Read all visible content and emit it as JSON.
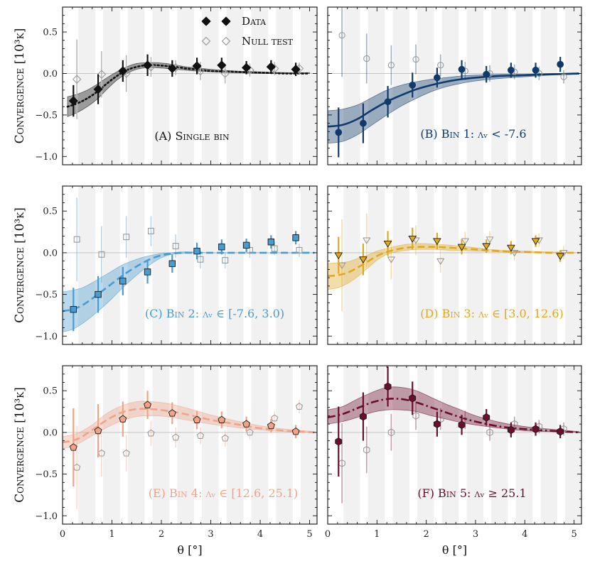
{
  "chart_data": {
    "type": "scatter",
    "x_label": "θ [°]",
    "y_label": "Convergence [10³κ]",
    "xlim": [
      0,
      5.15
    ],
    "ylim": [
      -1.1,
      0.8
    ],
    "x_ticks": [
      0,
      1,
      2,
      3,
      4,
      5
    ],
    "y_ticks": [
      -1.0,
      -0.5,
      0.0,
      0.5
    ],
    "y_tick_labels": [
      "−1.0",
      "−0.5",
      "0.0",
      "0.5"
    ],
    "legend": {
      "data_label": "Data",
      "null_label": "Null test",
      "location": "upper-center of panel A"
    },
    "panels": [
      {
        "id": "A",
        "label": "(A) Single bin",
        "color": "#111111",
        "marker": "diamond",
        "linestyle": "dotted",
        "x": [
          0.22,
          0.72,
          1.22,
          1.72,
          2.22,
          2.72,
          3.22,
          3.72,
          4.22,
          4.72
        ],
        "data": [
          -0.33,
          -0.19,
          0.03,
          0.1,
          0.06,
          0.09,
          0.1,
          0.07,
          0.08,
          0.05
        ],
        "err": [
          0.19,
          0.18,
          0.13,
          0.13,
          0.1,
          0.1,
          0.09,
          0.08,
          0.08,
          0.08
        ],
        "null": [
          -0.07,
          -0.01,
          0.0,
          0.08,
          0.07,
          0.03,
          0.0,
          0.04,
          0.06,
          0.06
        ],
        "null_err": [
          0.48,
          0.28,
          0.22,
          0.12,
          0.09,
          0.11,
          0.12,
          0.08,
          0.08,
          0.07
        ],
        "model_x": [
          0.1,
          0.3,
          0.5,
          0.7,
          0.9,
          1.1,
          1.3,
          1.5,
          1.7,
          1.9,
          2.1,
          2.3,
          2.5,
          2.7,
          3.0,
          3.5,
          4.0,
          4.5,
          5.0
        ],
        "model": [
          -0.4,
          -0.36,
          -0.3,
          -0.22,
          -0.12,
          -0.03,
          0.04,
          0.08,
          0.1,
          0.1,
          0.09,
          0.08,
          0.06,
          0.05,
          0.03,
          0.02,
          0.01,
          0.0,
          0.0
        ],
        "band_lo": [
          -0.52,
          -0.47,
          -0.4,
          -0.31,
          -0.19,
          -0.08,
          0.0,
          0.05,
          0.07,
          0.07,
          0.06,
          0.05,
          0.04,
          0.03,
          0.02,
          0.01,
          0.0,
          0.0,
          0.0
        ],
        "band_hi": [
          -0.28,
          -0.25,
          -0.2,
          -0.13,
          -0.05,
          0.02,
          0.08,
          0.12,
          0.13,
          0.13,
          0.12,
          0.1,
          0.08,
          0.07,
          0.05,
          0.03,
          0.02,
          0.01,
          0.01
        ]
      },
      {
        "id": "B",
        "label": "(B) Bin 1: λᵥ < -7.6",
        "color": "#0f3a6b",
        "marker": "circle",
        "linestyle": "solid",
        "x": [
          0.22,
          0.72,
          1.22,
          1.72,
          2.22,
          2.72,
          3.22,
          3.72,
          4.22,
          4.72
        ],
        "data": [
          -0.71,
          -0.6,
          -0.34,
          -0.14,
          -0.05,
          0.05,
          -0.01,
          0.04,
          0.04,
          0.11
        ],
        "err": [
          0.3,
          0.24,
          0.19,
          0.15,
          0.12,
          0.11,
          0.1,
          0.09,
          0.09,
          0.09
        ],
        "null": [
          0.46,
          0.18,
          0.1,
          0.17,
          0.1,
          0.03,
          0.0,
          0.02,
          0.0,
          -0.04
        ],
        "null_err": [
          0.5,
          0.3,
          0.24,
          0.18,
          0.13,
          0.11,
          0.1,
          0.09,
          0.08,
          0.08
        ],
        "model_x": [
          0.0,
          0.3,
          0.6,
          0.9,
          1.2,
          1.5,
          1.8,
          2.1,
          2.4,
          2.7,
          3.0,
          3.5,
          4.0,
          4.5,
          5.1
        ],
        "model": [
          -0.64,
          -0.62,
          -0.55,
          -0.44,
          -0.34,
          -0.26,
          -0.19,
          -0.14,
          -0.1,
          -0.07,
          -0.05,
          -0.03,
          -0.02,
          -0.01,
          0.0
        ],
        "band_lo": [
          -0.84,
          -0.82,
          -0.74,
          -0.62,
          -0.5,
          -0.39,
          -0.3,
          -0.22,
          -0.16,
          -0.12,
          -0.09,
          -0.06,
          -0.04,
          -0.02,
          -0.01
        ],
        "band_hi": [
          -0.45,
          -0.43,
          -0.38,
          -0.29,
          -0.2,
          -0.14,
          -0.1,
          -0.07,
          -0.05,
          -0.03,
          -0.02,
          -0.01,
          -0.01,
          0.0,
          0.0
        ]
      },
      {
        "id": "C",
        "label": "(C) Bin 2: λᵥ ∈ [-7.6, 3.0)",
        "color": "#4a9bcf",
        "marker": "square",
        "linestyle": "dashed",
        "x": [
          0.22,
          0.72,
          1.22,
          1.72,
          2.22,
          2.72,
          3.22,
          3.72,
          4.22,
          4.72
        ],
        "data": [
          -0.68,
          -0.5,
          -0.34,
          -0.23,
          -0.13,
          0.02,
          0.07,
          0.09,
          0.13,
          0.18
        ],
        "err": [
          0.26,
          0.22,
          0.17,
          0.14,
          0.11,
          0.1,
          0.09,
          0.08,
          0.08,
          0.08
        ],
        "null": [
          0.16,
          -0.02,
          0.19,
          0.26,
          0.08,
          -0.08,
          -0.09,
          0.03,
          0.05,
          0.03
        ],
        "null_err": [
          0.5,
          0.34,
          0.25,
          0.18,
          0.14,
          0.11,
          0.1,
          0.09,
          0.08,
          0.08
        ],
        "model_x": [
          0.0,
          0.2,
          0.4,
          0.6,
          0.8,
          1.0,
          1.2,
          1.4,
          1.6,
          1.8,
          2.0,
          2.2,
          2.4,
          2.6,
          3.0,
          3.5,
          4.0,
          4.5,
          5.1
        ],
        "model": [
          -0.7,
          -0.68,
          -0.63,
          -0.55,
          -0.46,
          -0.37,
          -0.28,
          -0.2,
          -0.13,
          -0.07,
          -0.03,
          -0.01,
          0.0,
          0.0,
          0.0,
          0.0,
          0.0,
          0.0,
          0.0
        ],
        "band_lo": [
          -0.95,
          -0.92,
          -0.85,
          -0.76,
          -0.66,
          -0.55,
          -0.43,
          -0.32,
          -0.22,
          -0.13,
          -0.06,
          -0.02,
          -0.01,
          0.0,
          0.0,
          0.0,
          0.0,
          0.0,
          0.0
        ],
        "band_hi": [
          -0.47,
          -0.45,
          -0.42,
          -0.36,
          -0.29,
          -0.22,
          -0.15,
          -0.1,
          -0.06,
          -0.03,
          -0.01,
          0.0,
          0.01,
          0.01,
          0.0,
          0.0,
          0.0,
          0.0,
          0.0
        ]
      },
      {
        "id": "D",
        "label": "(D) Bin 3: λᵥ ∈ [3.0, 12.6)",
        "color": "#dfa822",
        "marker": "triangle-down",
        "linestyle": "dashed",
        "x": [
          0.22,
          0.72,
          1.22,
          1.72,
          2.22,
          2.72,
          3.22,
          3.72,
          4.22,
          4.72
        ],
        "data": [
          -0.03,
          -0.08,
          0.11,
          0.17,
          0.14,
          0.07,
          0.08,
          0.06,
          0.14,
          -0.04
        ],
        "err": [
          0.22,
          0.19,
          0.15,
          0.13,
          0.1,
          0.09,
          0.08,
          0.08,
          0.07,
          0.07
        ],
        "null": [
          -0.15,
          0.15,
          -0.08,
          0.15,
          -0.1,
          0.14,
          0.16,
          0.0,
          0.15,
          0.0
        ],
        "null_err": [
          0.55,
          0.32,
          0.24,
          0.18,
          0.14,
          0.11,
          0.1,
          0.09,
          0.08,
          0.08
        ],
        "model_x": [
          0.0,
          0.2,
          0.4,
          0.6,
          0.8,
          1.0,
          1.2,
          1.4,
          1.6,
          1.8,
          2.0,
          2.2,
          2.5,
          3.0,
          3.5,
          4.0,
          4.5,
          5.1
        ],
        "model": [
          -0.28,
          -0.27,
          -0.24,
          -0.18,
          -0.11,
          -0.04,
          0.01,
          0.04,
          0.06,
          0.07,
          0.07,
          0.07,
          0.06,
          0.04,
          0.02,
          0.01,
          0.0,
          0.0
        ],
        "band_lo": [
          -0.44,
          -0.42,
          -0.37,
          -0.29,
          -0.19,
          -0.09,
          -0.02,
          0.01,
          0.03,
          0.04,
          0.04,
          0.04,
          0.03,
          0.02,
          0.01,
          0.0,
          0.0,
          0.0
        ],
        "band_hi": [
          -0.13,
          -0.12,
          -0.11,
          -0.07,
          -0.03,
          0.02,
          0.05,
          0.08,
          0.1,
          0.11,
          0.11,
          0.1,
          0.09,
          0.06,
          0.03,
          0.02,
          0.01,
          0.0
        ]
      },
      {
        "id": "E",
        "label": "(E) Bin 4: λᵥ ∈ [12.6, 25.1)",
        "color": "#f0a386",
        "marker": "pentagon",
        "linestyle": "dashed",
        "x": [
          0.22,
          0.72,
          1.22,
          1.72,
          2.22,
          2.72,
          3.22,
          3.72,
          4.22,
          4.72
        ],
        "data": [
          -0.18,
          0.02,
          0.16,
          0.33,
          0.23,
          0.15,
          0.15,
          0.1,
          0.08,
          0.01
        ],
        "err": [
          0.47,
          0.32,
          0.21,
          0.17,
          0.13,
          0.11,
          0.1,
          0.09,
          0.08,
          0.08
        ],
        "null": [
          -0.42,
          -0.25,
          -0.25,
          -0.01,
          -0.06,
          -0.04,
          -0.07,
          0.0,
          0.17,
          0.31
        ],
        "null_err": [
          0.5,
          0.28,
          0.22,
          0.15,
          0.12,
          0.1,
          0.1,
          0.09,
          0.08,
          0.08
        ],
        "model_x": [
          0.0,
          0.3,
          0.6,
          0.9,
          1.2,
          1.5,
          1.8,
          2.1,
          2.4,
          2.7,
          3.0,
          3.5,
          4.0,
          4.5,
          5.1
        ],
        "model": [
          -0.12,
          -0.08,
          0.03,
          0.15,
          0.24,
          0.28,
          0.28,
          0.26,
          0.23,
          0.19,
          0.15,
          0.1,
          0.05,
          0.02,
          0.0
        ],
        "band_lo": [
          -0.2,
          -0.14,
          -0.04,
          0.06,
          0.14,
          0.19,
          0.2,
          0.19,
          0.16,
          0.13,
          0.1,
          0.06,
          0.03,
          0.01,
          0.0
        ],
        "band_hi": [
          -0.05,
          -0.01,
          0.09,
          0.23,
          0.32,
          0.37,
          0.37,
          0.35,
          0.31,
          0.26,
          0.21,
          0.14,
          0.08,
          0.04,
          0.01
        ]
      },
      {
        "id": "F",
        "label": "(F) Bin 5: λᵥ ≥ 25.1",
        "color": "#6b0d2c",
        "marker": "hexagon",
        "linestyle": "dashdot",
        "x": [
          0.22,
          0.72,
          1.22,
          1.72,
          2.22,
          2.72,
          3.22,
          3.72,
          4.22,
          4.72
        ],
        "data": [
          -0.11,
          0.19,
          0.55,
          0.41,
          0.1,
          0.09,
          0.18,
          0.03,
          0.04,
          0.01
        ],
        "err": [
          0.42,
          0.29,
          0.24,
          0.2,
          0.15,
          0.12,
          0.1,
          0.09,
          0.08,
          0.08
        ],
        "null": [
          -0.37,
          -0.21,
          0.0,
          0.2,
          0.16,
          0.15,
          0.0,
          0.1,
          0.07,
          0.04
        ],
        "null_err": [
          0.48,
          0.28,
          0.22,
          0.17,
          0.13,
          0.11,
          0.1,
          0.09,
          0.08,
          0.08
        ],
        "model_x": [
          0.0,
          0.3,
          0.6,
          0.9,
          1.2,
          1.5,
          1.8,
          2.1,
          2.4,
          2.7,
          3.0,
          3.5,
          4.0,
          4.5,
          5.1
        ],
        "model": [
          0.18,
          0.22,
          0.29,
          0.36,
          0.4,
          0.4,
          0.36,
          0.3,
          0.24,
          0.18,
          0.13,
          0.07,
          0.04,
          0.02,
          0.0
        ],
        "band_lo": [
          0.1,
          0.13,
          0.18,
          0.24,
          0.27,
          0.27,
          0.25,
          0.2,
          0.16,
          0.12,
          0.09,
          0.05,
          0.02,
          0.01,
          0.0
        ],
        "band_hi": [
          0.27,
          0.31,
          0.4,
          0.48,
          0.54,
          0.54,
          0.5,
          0.42,
          0.34,
          0.27,
          0.2,
          0.12,
          0.07,
          0.04,
          0.01
        ]
      }
    ]
  }
}
